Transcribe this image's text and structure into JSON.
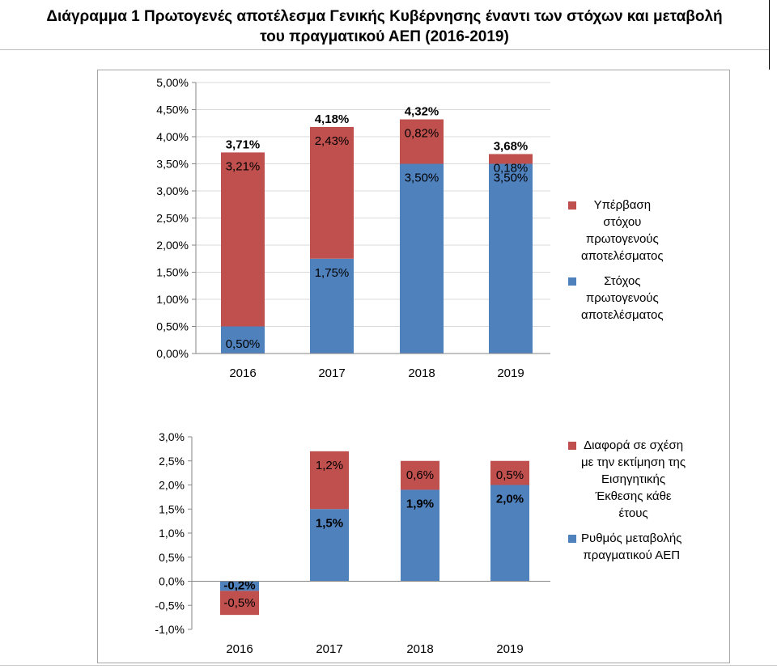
{
  "title": {
    "line1": "Διάγραμμα 1 Πρωτογενές αποτέλεσμα Γενικής Κυβέρνησης έναντι των στόχων και μεταβολή",
    "line2": "του πραγματικού ΑΕΠ (2016-2019)"
  },
  "colors": {
    "blue": "#4f81bd",
    "red": "#c0504d",
    "grid": "#d9d9d9",
    "axis": "#868686"
  },
  "chart_data": [
    {
      "type": "bar",
      "stacked": true,
      "categories": [
        "2016",
        "2017",
        "2018",
        "2019"
      ],
      "series": [
        {
          "name": "Στόχος πρωτογενούς αποτελέσματος",
          "values": [
            0.5,
            1.75,
            3.5,
            3.5
          ],
          "labels": [
            "0,50%",
            "1,75%",
            "3,50%",
            "3,50%"
          ],
          "color": "#4f81bd"
        },
        {
          "name": "Υπέρβαση στόχου πρωτογενούς αποτελέσματος",
          "values": [
            3.21,
            2.43,
            0.82,
            0.18
          ],
          "labels": [
            "3,21%",
            "2,43%",
            "0,82%",
            "0,18%"
          ],
          "color": "#c0504d"
        }
      ],
      "totals": [
        "3,71%",
        "4,18%",
        "4,32%",
        "3,68%"
      ],
      "ylim": [
        0,
        5
      ],
      "yticks": [
        {
          "v": 0,
          "label": "0,00%"
        },
        {
          "v": 0.5,
          "label": "0,50%"
        },
        {
          "v": 1,
          "label": "1,00%"
        },
        {
          "v": 1.5,
          "label": "1,50%"
        },
        {
          "v": 2,
          "label": "2,00%"
        },
        {
          "v": 2.5,
          "label": "2,50%"
        },
        {
          "v": 3,
          "label": "3,00%"
        },
        {
          "v": 3.5,
          "label": "3,50%"
        },
        {
          "v": 4,
          "label": "4,00%"
        },
        {
          "v": 4.5,
          "label": "4,50%"
        },
        {
          "v": 5,
          "label": "5,00%"
        }
      ],
      "grid": true,
      "legend": {
        "placement": "right",
        "items": [
          {
            "lines": [
              "Υπέρβαση",
              "στόχου",
              "πρωτογενούς",
              "αποτελέσματος"
            ],
            "color": "#c0504d"
          },
          {
            "lines": [
              "Στόχος",
              "πρωτογενούς",
              "αποτελέσματος"
            ],
            "color": "#4f81bd"
          }
        ]
      }
    },
    {
      "type": "bar",
      "stacked": true,
      "categories": [
        "2016",
        "2017",
        "2018",
        "2019"
      ],
      "series": [
        {
          "name": "Ρυθμός μεταβολής πραγματικού ΑΕΠ",
          "values": [
            -0.2,
            1.5,
            1.9,
            2.0
          ],
          "labels": [
            "-0,2%",
            "1,5%",
            "1,9%",
            "2,0%"
          ],
          "color": "#4f81bd"
        },
        {
          "name": "Διαφορά σε σχέση με την εκτίμηση της Εισηγητικής Έκθεσης κάθε έτους",
          "values": [
            -0.5,
            1.2,
            0.6,
            0.5
          ],
          "labels": [
            "-0,5%",
            "1,2%",
            "0,6%",
            "0,5%"
          ],
          "color": "#c0504d"
        }
      ],
      "ylim": [
        -1,
        3
      ],
      "yticks": [
        {
          "v": -1,
          "label": "-1,0%"
        },
        {
          "v": -0.5,
          "label": "-0,5%"
        },
        {
          "v": 0,
          "label": "0,0%"
        },
        {
          "v": 0.5,
          "label": "0,5%"
        },
        {
          "v": 1,
          "label": "1,0%"
        },
        {
          "v": 1.5,
          "label": "1,5%"
        },
        {
          "v": 2,
          "label": "2,0%"
        },
        {
          "v": 2.5,
          "label": "2,5%"
        },
        {
          "v": 3,
          "label": "3,0%"
        }
      ],
      "grid": false,
      "legend": {
        "placement": "right",
        "items": [
          {
            "lines": [
              "Διαφορά σε σχέση",
              "με την εκτίμηση της",
              "Εισηγητικής",
              "Έκθεσης κάθε",
              "έτους"
            ],
            "color": "#c0504d"
          },
          {
            "lines": [
              "Ρυθμός μεταβολής",
              "πραγματικού ΑΕΠ"
            ],
            "color": "#4f81bd"
          }
        ]
      }
    }
  ]
}
